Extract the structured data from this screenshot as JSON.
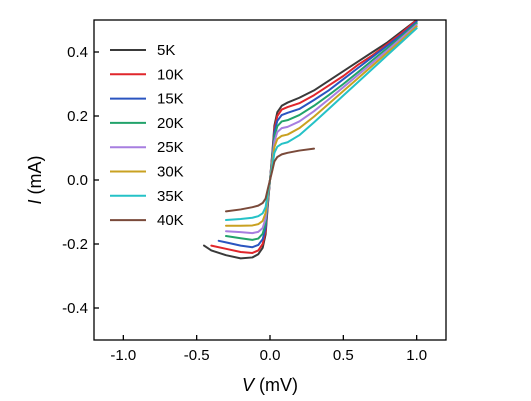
{
  "chart_data": {
    "type": "line",
    "xlabel_symbol": "V",
    "xlabel_unit": " (mV)",
    "ylabel_symbol": "I",
    "ylabel_unit": " (mA)",
    "xlim": [
      -1.2,
      1.2
    ],
    "ylim": [
      -0.5,
      0.5
    ],
    "xticks": [
      -1.0,
      -0.5,
      0.0,
      0.5,
      1.0
    ],
    "xtick_labels": [
      "-1.0",
      "-0.5",
      "0.0",
      "0.5",
      "1.0"
    ],
    "yticks": [
      -0.4,
      -0.2,
      0.0,
      0.2,
      0.4
    ],
    "ytick_labels": [
      "-0.4",
      "-0.2",
      "0.0",
      "0.2",
      "0.4"
    ],
    "grid": false,
    "legend_position": "top-left",
    "series": [
      {
        "name": "5K",
        "color": "#3a3a3a",
        "x": [
          -0.45,
          -0.4,
          -0.3,
          -0.2,
          -0.12,
          -0.08,
          -0.05,
          -0.03,
          -0.015,
          0.0,
          0.015,
          0.03,
          0.05,
          0.08,
          0.12,
          0.2,
          0.3,
          0.4,
          0.5,
          0.6,
          0.7,
          0.8,
          0.9,
          1.0
        ],
        "y": [
          -0.205,
          -0.22,
          -0.235,
          -0.245,
          -0.242,
          -0.232,
          -0.212,
          -0.17,
          -0.08,
          0.0,
          0.08,
          0.17,
          0.212,
          0.232,
          0.242,
          0.257,
          0.28,
          0.31,
          0.34,
          0.37,
          0.4,
          0.43,
          0.465,
          0.5
        ]
      },
      {
        "name": "10K",
        "color": "#e0262b",
        "x": [
          -0.4,
          -0.3,
          -0.2,
          -0.12,
          -0.08,
          -0.05,
          -0.03,
          -0.015,
          0.0,
          0.015,
          0.03,
          0.05,
          0.08,
          0.12,
          0.2,
          0.3,
          0.4,
          0.5,
          0.6,
          0.7,
          0.8,
          0.9,
          1.0
        ],
        "y": [
          -0.205,
          -0.215,
          -0.225,
          -0.228,
          -0.22,
          -0.2,
          -0.16,
          -0.075,
          0.0,
          0.075,
          0.16,
          0.2,
          0.22,
          0.228,
          0.24,
          0.265,
          0.295,
          0.325,
          0.36,
          0.39,
          0.425,
          0.46,
          0.5
        ]
      },
      {
        "name": "15K",
        "color": "#2a55c0",
        "x": [
          -0.35,
          -0.3,
          -0.2,
          -0.12,
          -0.08,
          -0.05,
          -0.03,
          -0.015,
          0.0,
          0.015,
          0.03,
          0.05,
          0.08,
          0.12,
          0.2,
          0.3,
          0.4,
          0.5,
          0.6,
          0.7,
          0.8,
          0.9,
          1.0
        ],
        "y": [
          -0.19,
          -0.195,
          -0.205,
          -0.21,
          -0.203,
          -0.185,
          -0.15,
          -0.07,
          0.0,
          0.07,
          0.15,
          0.185,
          0.203,
          0.21,
          0.222,
          0.25,
          0.28,
          0.315,
          0.35,
          0.385,
          0.42,
          0.455,
          0.495
        ]
      },
      {
        "name": "20K",
        "color": "#22a36b",
        "x": [
          -0.3,
          -0.2,
          -0.12,
          -0.08,
          -0.05,
          -0.03,
          -0.015,
          0.0,
          0.015,
          0.03,
          0.05,
          0.08,
          0.12,
          0.2,
          0.3,
          0.4,
          0.5,
          0.6,
          0.7,
          0.8,
          0.9,
          1.0
        ],
        "y": [
          -0.175,
          -0.182,
          -0.187,
          -0.183,
          -0.168,
          -0.135,
          -0.063,
          0.0,
          0.063,
          0.135,
          0.168,
          0.183,
          0.187,
          0.203,
          0.232,
          0.265,
          0.3,
          0.337,
          0.375,
          0.412,
          0.45,
          0.49
        ]
      },
      {
        "name": "25K",
        "color": "#a77ee0",
        "x": [
          -0.3,
          -0.2,
          -0.12,
          -0.08,
          -0.05,
          -0.03,
          -0.015,
          0.0,
          0.015,
          0.03,
          0.05,
          0.08,
          0.12,
          0.2,
          0.3,
          0.4,
          0.5,
          0.6,
          0.7,
          0.8,
          0.9,
          1.0
        ],
        "y": [
          -0.16,
          -0.163,
          -0.166,
          -0.162,
          -0.15,
          -0.12,
          -0.056,
          0.0,
          0.056,
          0.12,
          0.15,
          0.162,
          0.166,
          0.183,
          0.215,
          0.252,
          0.29,
          0.328,
          0.367,
          0.405,
          0.445,
          0.485
        ]
      },
      {
        "name": "30K",
        "color": "#c9a121",
        "x": [
          -0.3,
          -0.2,
          -0.12,
          -0.08,
          -0.05,
          -0.03,
          -0.015,
          0.0,
          0.015,
          0.03,
          0.05,
          0.08,
          0.12,
          0.2,
          0.3,
          0.4,
          0.5,
          0.6,
          0.7,
          0.8,
          0.9,
          1.0
        ],
        "y": [
          -0.143,
          -0.143,
          -0.142,
          -0.138,
          -0.128,
          -0.103,
          -0.048,
          0.0,
          0.048,
          0.103,
          0.128,
          0.138,
          0.142,
          0.162,
          0.198,
          0.238,
          0.278,
          0.318,
          0.358,
          0.398,
          0.438,
          0.48
        ]
      },
      {
        "name": "35K",
        "color": "#25c2c7",
        "x": [
          -0.3,
          -0.2,
          -0.12,
          -0.08,
          -0.05,
          -0.03,
          -0.015,
          0.0,
          0.015,
          0.03,
          0.05,
          0.08,
          0.12,
          0.2,
          0.3,
          0.4,
          0.5,
          0.6,
          0.7,
          0.8,
          0.9,
          1.0
        ],
        "y": [
          -0.125,
          -0.122,
          -0.118,
          -0.113,
          -0.104,
          -0.085,
          -0.04,
          0.0,
          0.04,
          0.085,
          0.104,
          0.113,
          0.118,
          0.14,
          0.18,
          0.222,
          0.264,
          0.306,
          0.348,
          0.39,
          0.432,
          0.474
        ]
      },
      {
        "name": "40K",
        "color": "#7a4a3a",
        "x": [
          -0.3,
          -0.2,
          -0.12,
          -0.08,
          -0.05,
          -0.03,
          -0.015,
          0.0,
          0.015,
          0.03,
          0.05,
          0.08,
          0.12,
          0.2,
          0.3
        ],
        "y": [
          -0.098,
          -0.092,
          -0.085,
          -0.08,
          -0.072,
          -0.058,
          -0.028,
          0.0,
          0.028,
          0.058,
          0.072,
          0.08,
          0.085,
          0.092,
          0.098
        ]
      }
    ]
  }
}
